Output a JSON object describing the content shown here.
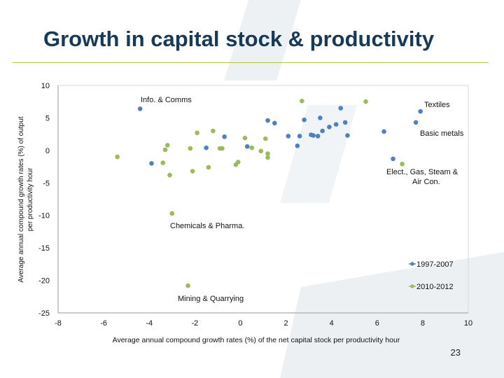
{
  "slide": {
    "title": "Growth in capital stock & productivity",
    "page_number": "23"
  },
  "chart_data": {
    "type": "scatter",
    "xlabel": "Average annual compound growth rates (%) of the net capital stock per productivity hour",
    "ylabel": "Average annual compound growth rates (%) of output per productivity hour",
    "xlim": [
      -8,
      10
    ],
    "ylim": [
      -25,
      10
    ],
    "xticks": [
      -8,
      -6,
      -4,
      -2,
      0,
      2,
      4,
      6,
      8,
      10
    ],
    "xtick_labels": [
      "-8",
      "-6",
      "-4",
      "-2",
      "0",
      "2",
      "4",
      "6",
      "8",
      "10"
    ],
    "yticks": [
      -25,
      -20,
      -15,
      -10,
      -5,
      0,
      5,
      10
    ],
    "ytick_labels": [
      "-25",
      "-20",
      "-15",
      "-10",
      "-5",
      "0",
      "5",
      "10"
    ],
    "grid": false,
    "legend_position": "bottom-right",
    "series": [
      {
        "name": "1997-2007",
        "color": "#4f81bd",
        "points": [
          [
            -4.4,
            6.4
          ],
          [
            -3.9,
            -2.0
          ],
          [
            -1.5,
            0.4
          ],
          [
            -0.7,
            2.1
          ],
          [
            0.3,
            0.6
          ],
          [
            1.2,
            4.6
          ],
          [
            1.5,
            4.2
          ],
          [
            2.1,
            2.2
          ],
          [
            2.5,
            0.7
          ],
          [
            2.6,
            2.2
          ],
          [
            2.8,
            4.7
          ],
          [
            3.1,
            2.4
          ],
          [
            3.2,
            2.3
          ],
          [
            3.4,
            2.2
          ],
          [
            3.5,
            5.0
          ],
          [
            3.6,
            3.0
          ],
          [
            3.9,
            3.6
          ],
          [
            4.2,
            4.0
          ],
          [
            4.4,
            6.5
          ],
          [
            4.6,
            4.3
          ],
          [
            4.7,
            2.3
          ],
          [
            6.3,
            2.9
          ],
          [
            6.7,
            -1.3
          ],
          [
            7.7,
            4.3
          ],
          [
            7.9,
            6.0
          ]
        ]
      },
      {
        "name": "2010-2012",
        "color": "#9bbb59",
        "points": [
          [
            -5.4,
            -1.0
          ],
          [
            -3.4,
            -1.9
          ],
          [
            -3.3,
            0.1
          ],
          [
            -3.2,
            0.8
          ],
          [
            -3.1,
            -3.8
          ],
          [
            -3.0,
            -9.7
          ],
          [
            -2.2,
            0.3
          ],
          [
            -2.1,
            -3.2
          ],
          [
            -1.9,
            2.7
          ],
          [
            -1.4,
            -2.6
          ],
          [
            -1.2,
            3.0
          ],
          [
            -0.9,
            0.3
          ],
          [
            -0.8,
            0.3
          ],
          [
            -0.2,
            -2.2
          ],
          [
            -0.1,
            -1.8
          ],
          [
            0.2,
            1.9
          ],
          [
            0.5,
            0.4
          ],
          [
            0.9,
            -0.1
          ],
          [
            1.1,
            1.8
          ],
          [
            1.2,
            -0.5
          ],
          [
            1.2,
            -1.1
          ],
          [
            2.7,
            7.6
          ],
          [
            5.5,
            7.5
          ],
          [
            7.1,
            -2.1
          ],
          [
            -2.3,
            -20.8
          ]
        ]
      }
    ],
    "annotations": [
      {
        "id": "info-comms",
        "text": "Info. & Comms"
      },
      {
        "id": "textiles",
        "text": "Textiles"
      },
      {
        "id": "basic-metals",
        "text": "Basic metals"
      },
      {
        "id": "elect-gas-1",
        "text": "Elect., Gas, Steam &"
      },
      {
        "id": "elect-gas-2",
        "text": "Air Con."
      },
      {
        "id": "chem-pharma",
        "text": "Chemicals & Pharma."
      },
      {
        "id": "mining",
        "text": "Mining & Quarrying"
      }
    ]
  },
  "decor": {
    "accent_color": "#b5c23a",
    "title_color": "#163a57",
    "watermark_color": "#eef1f4"
  }
}
